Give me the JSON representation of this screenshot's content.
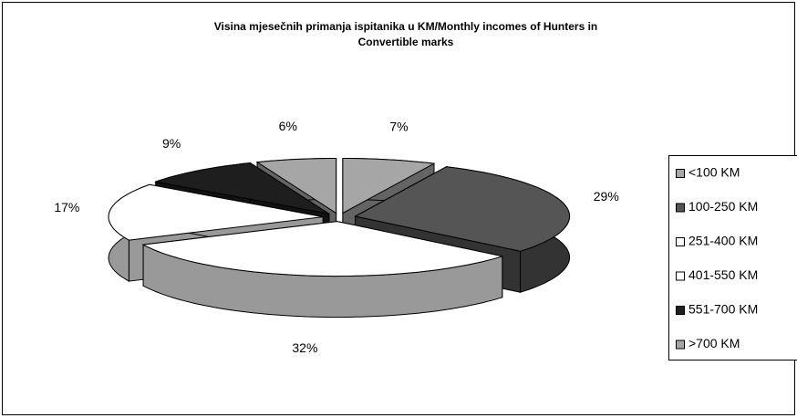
{
  "chart_data": {
    "type": "pie3d",
    "title": [
      "Visina mjesečnih primanja ispitanika u KM/Monthly incomes of Hunters in",
      "Convertible marks"
    ],
    "categories": [
      "<100 KM",
      "100-250 KM",
      "251-400 KM",
      "401-550 KM",
      "551-700 KM",
      ">700 KM"
    ],
    "values": [
      7,
      29,
      32,
      17,
      9,
      6
    ],
    "value_labels": [
      "7%",
      "29%",
      "32%",
      "17%",
      "9%",
      "6%"
    ],
    "colors": [
      "#a6a6a6",
      "#555555",
      "#ffffff",
      "#ffffff",
      "#1e1e1e",
      "#a6a6a6"
    ],
    "legend": "right"
  }
}
